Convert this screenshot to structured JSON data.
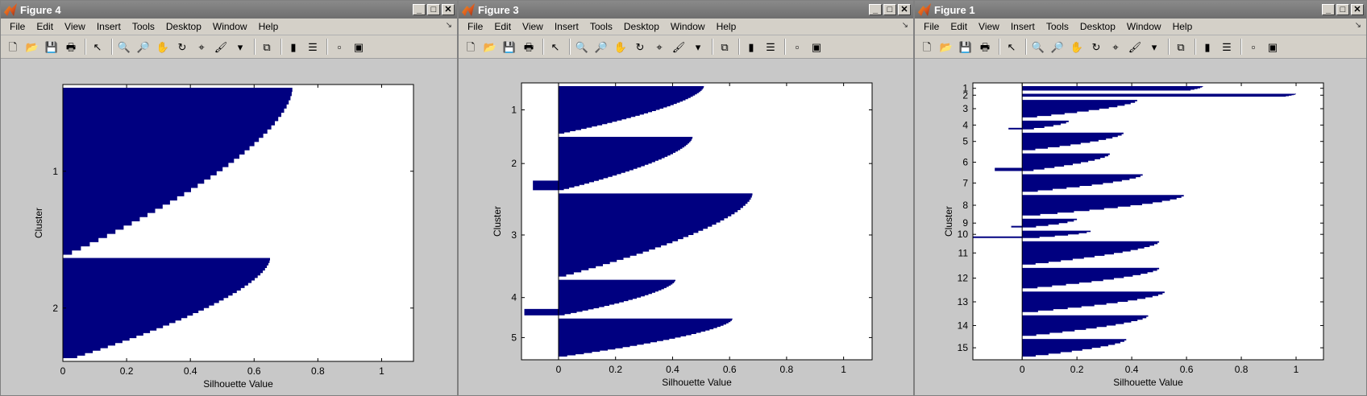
{
  "figures": [
    {
      "title": "Figure 4",
      "menu": [
        "File",
        "Edit",
        "View",
        "Insert",
        "Tools",
        "Desktop",
        "Window",
        "Help"
      ],
      "chart_data": {
        "type": "bar",
        "xlabel": "Silhouette Value",
        "ylabel": "Cluster",
        "xlim": [
          0,
          1.1
        ],
        "xticks": [
          "0",
          "0.2",
          "0.4",
          "0.6",
          "0.8",
          "1"
        ],
        "yticks": [
          "1",
          "2"
        ],
        "grid": false,
        "clusters": [
          {
            "label": "1",
            "n": 100,
            "max": 0.72,
            "min": 0.0,
            "neg": 0
          },
          {
            "label": "2",
            "n": 60,
            "max": 0.65,
            "min": 0.02,
            "neg": 0
          }
        ]
      }
    },
    {
      "title": "Figure 3",
      "menu": [
        "File",
        "Edit",
        "View",
        "Insert",
        "Tools",
        "Desktop",
        "Window",
        "Help"
      ],
      "chart_data": {
        "type": "bar",
        "xlabel": "Silhouette Value",
        "ylabel": "Cluster",
        "xlim": [
          -0.13,
          1.1
        ],
        "xticks": [
          "0",
          "0.2",
          "0.4",
          "0.6",
          "0.8",
          "1"
        ],
        "yticks": [
          "1",
          "2",
          "3",
          "4",
          "5"
        ],
        "grid": false,
        "clusters": [
          {
            "label": "1",
            "n": 40,
            "max": 0.51,
            "min": 0.0,
            "neg": 0
          },
          {
            "label": "2",
            "n": 45,
            "max": 0.47,
            "min": 0.0,
            "neg": 0.09
          },
          {
            "label": "3",
            "n": 70,
            "max": 0.68,
            "min": 0.0,
            "neg": 0
          },
          {
            "label": "4",
            "n": 30,
            "max": 0.41,
            "min": 0.0,
            "neg": 0.12
          },
          {
            "label": "5",
            "n": 32,
            "max": 0.61,
            "min": 0.0,
            "neg": 0
          }
        ]
      }
    },
    {
      "title": "Figure 1",
      "menu": [
        "File",
        "Edit",
        "View",
        "Insert",
        "Tools",
        "Desktop",
        "Window",
        "Help"
      ],
      "chart_data": {
        "type": "bar",
        "xlabel": "Silhouette Value",
        "ylabel": "Cluster",
        "xlim": [
          -0.18,
          1.1
        ],
        "xticks": [
          "0",
          "0.2",
          "0.4",
          "0.6",
          "0.8",
          "1"
        ],
        "yticks": [
          "1",
          "2",
          "3",
          "4",
          "5",
          "6",
          "7",
          "8",
          "9",
          "10",
          "11",
          "12",
          "13",
          "14",
          "15"
        ],
        "grid": false,
        "clusters": [
          {
            "label": "1",
            "n": 3,
            "max": 0.66,
            "min": 0.6,
            "neg": 0
          },
          {
            "label": "2",
            "n": 2,
            "max": 1.0,
            "min": 0.95,
            "neg": 0
          },
          {
            "label": "3",
            "n": 12,
            "max": 0.42,
            "min": 0.0,
            "neg": 0
          },
          {
            "label": "4",
            "n": 6,
            "max": 0.17,
            "min": 0.0,
            "neg": 0.05
          },
          {
            "label": "5",
            "n": 12,
            "max": 0.37,
            "min": 0.0,
            "neg": 0
          },
          {
            "label": "6",
            "n": 12,
            "max": 0.32,
            "min": 0.0,
            "neg": 0.1
          },
          {
            "label": "7",
            "n": 12,
            "max": 0.44,
            "min": 0.0,
            "neg": 0
          },
          {
            "label": "8",
            "n": 14,
            "max": 0.59,
            "min": 0.0,
            "neg": 0
          },
          {
            "label": "9",
            "n": 6,
            "max": 0.2,
            "min": 0.0,
            "neg": 0.04
          },
          {
            "label": "10",
            "n": 5,
            "max": 0.25,
            "min": 0.0,
            "neg": 0.18
          },
          {
            "label": "11",
            "n": 16,
            "max": 0.5,
            "min": 0.0,
            "neg": 0
          },
          {
            "label": "12",
            "n": 14,
            "max": 0.5,
            "min": 0.0,
            "neg": 0
          },
          {
            "label": "13",
            "n": 14,
            "max": 0.52,
            "min": 0.0,
            "neg": 0
          },
          {
            "label": "14",
            "n": 14,
            "max": 0.46,
            "min": 0.0,
            "neg": 0
          },
          {
            "label": "15",
            "n": 12,
            "max": 0.38,
            "min": 0.0,
            "neg": 0
          }
        ]
      }
    }
  ],
  "toolbar_icons": [
    "new-file-icon",
    "open-folder-icon",
    "save-icon",
    "print-icon",
    "pointer-icon",
    "zoom-in-icon",
    "zoom-out-icon",
    "pan-hand-icon",
    "rotate-3d-icon",
    "data-cursor-icon",
    "brush-icon",
    "brush-menu-icon",
    "link-plot-icon",
    "colorbar-icon",
    "legend-icon",
    "hide-plot-tools-icon",
    "show-plot-tools-icon"
  ],
  "colors": {
    "bar": "#000080",
    "axes_bg": "#ffffff",
    "figure_bg": "#c8c8c8",
    "title_bar": "#7a7a7a"
  }
}
